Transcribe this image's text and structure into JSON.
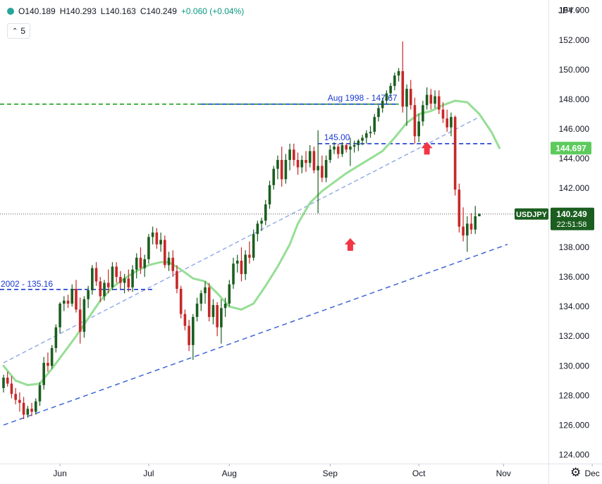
{
  "header": {
    "open": "O140.189",
    "high": "H140.293",
    "low": "L140.163",
    "close": "C140.249",
    "change": "+0.060 (+0.04%)",
    "interval": "5",
    "currency": "JPY"
  },
  "price_axis": {
    "ticks": [
      "124.000",
      "126.000",
      "128.000",
      "130.000",
      "132.000",
      "134.000",
      "136.000",
      "138.000",
      "140.000",
      "142.000",
      "144.000",
      "146.000",
      "148.000",
      "150.000",
      "152.000",
      "154.000"
    ]
  },
  "time_axis": {
    "ticks": [
      "Jun",
      "Jul",
      "Aug",
      "Sep",
      "Oct",
      "Nov",
      "Dec"
    ]
  },
  "labels": {
    "symbol": "USDJPY",
    "last_price": "140.249",
    "countdown": "22:51:58",
    "sma_value": "144.697",
    "level_2002": "2002 - 135.16",
    "level_1998": "Aug 1998 - 147.67",
    "level_145": "145.00"
  },
  "colors": {
    "up": "#1b5e20",
    "down": "#c62828",
    "sma": "#96de96",
    "sma_label": "#5ccb5c",
    "level_line": "#1a3ad1",
    "trend_line": "#3f66d6",
    "green_dashed": "#1aa31a",
    "arrow": "#f23645",
    "symbol_label": "#1b5e20"
  },
  "chart_data": {
    "type": "candlestick",
    "symbol": "USDJPY",
    "ylim": [
      123.4,
      154.7
    ],
    "yticks": [
      124,
      126,
      128,
      130,
      132,
      134,
      136,
      138,
      140,
      142,
      144,
      146,
      148,
      150,
      152,
      154
    ],
    "xticks": [
      {
        "label": "Jun",
        "t": 14
      },
      {
        "label": "Jul",
        "t": 36
      },
      {
        "label": "Aug",
        "t": 56
      },
      {
        "label": "Sep",
        "t": 81
      },
      {
        "label": "Oct",
        "t": 103
      },
      {
        "label": "Nov",
        "t": 124
      },
      {
        "label": "Dec",
        "t": 146
      }
    ],
    "ohlc": [
      [
        128.5,
        129.4,
        128.2,
        129.2
      ],
      [
        129.2,
        129.6,
        128.6,
        128.8
      ],
      [
        128.8,
        129.3,
        127.8,
        128.1
      ],
      [
        128.1,
        128.5,
        127.4,
        127.7
      ],
      [
        127.7,
        128.2,
        126.9,
        127.5
      ],
      [
        127.5,
        127.9,
        126.4,
        126.7
      ],
      [
        126.7,
        127.3,
        126.5,
        127.1
      ],
      [
        127.1,
        127.5,
        126.6,
        126.9
      ],
      [
        126.9,
        127.8,
        126.7,
        127.6
      ],
      [
        127.6,
        128.9,
        127.3,
        128.7
      ],
      [
        128.7,
        130.6,
        128.4,
        130.2
      ],
      [
        130.2,
        130.9,
        129.6,
        130.0
      ],
      [
        130.0,
        131.4,
        129.8,
        131.2
      ],
      [
        131.2,
        132.8,
        130.9,
        132.6
      ],
      [
        132.6,
        134.3,
        132.2,
        134.2
      ],
      [
        134.2,
        134.7,
        133.7,
        134.4
      ],
      [
        134.4,
        134.8,
        133.9,
        134.2
      ],
      [
        134.2,
        135.5,
        134.0,
        135.2
      ],
      [
        135.2,
        135.8,
        133.6,
        133.8
      ],
      [
        133.8,
        134.6,
        131.5,
        132.3
      ],
      [
        132.3,
        134.7,
        131.9,
        134.5
      ],
      [
        134.5,
        135.4,
        133.9,
        135.1
      ],
      [
        135.1,
        136.8,
        134.8,
        136.6
      ],
      [
        136.6,
        137.0,
        135.4,
        135.7
      ],
      [
        135.7,
        136.0,
        134.3,
        134.7
      ],
      [
        134.7,
        135.8,
        134.4,
        135.6
      ],
      [
        135.6,
        136.5,
        134.9,
        135.3
      ],
      [
        135.3,
        137.0,
        135.1,
        136.7
      ],
      [
        136.7,
        137.0,
        135.6,
        136.0
      ],
      [
        136.0,
        136.4,
        135.2,
        135.6
      ],
      [
        135.6,
        136.2,
        134.9,
        135.9
      ],
      [
        135.9,
        136.5,
        135.0,
        135.3
      ],
      [
        135.3,
        136.8,
        135.0,
        136.5
      ],
      [
        136.5,
        137.6,
        135.9,
        137.3
      ],
      [
        137.3,
        138.0,
        136.2,
        136.6
      ],
      [
        136.6,
        137.5,
        136.0,
        137.2
      ],
      [
        137.2,
        138.9,
        136.9,
        138.7
      ],
      [
        138.7,
        139.4,
        138.2,
        139.0
      ],
      [
        139.0,
        139.3,
        137.9,
        138.2
      ],
      [
        138.2,
        139.0,
        137.7,
        138.5
      ],
      [
        138.5,
        138.8,
        136.6,
        136.8
      ],
      [
        136.8,
        137.7,
        136.4,
        137.3
      ],
      [
        137.3,
        137.8,
        136.0,
        136.4
      ],
      [
        136.4,
        136.8,
        134.9,
        135.2
      ],
      [
        135.2,
        135.4,
        133.2,
        133.5
      ],
      [
        133.5,
        133.8,
        132.4,
        132.7
      ],
      [
        132.7,
        133.1,
        131.0,
        131.4
      ],
      [
        131.4,
        133.5,
        130.4,
        133.3
      ],
      [
        133.3,
        134.6,
        133.0,
        134.2
      ],
      [
        134.2,
        135.1,
        133.7,
        134.9
      ],
      [
        134.9,
        135.7,
        134.2,
        135.3
      ],
      [
        135.3,
        135.6,
        133.0,
        133.3
      ],
      [
        133.3,
        134.5,
        132.8,
        134.1
      ],
      [
        134.1,
        134.3,
        132.0,
        132.6
      ],
      [
        132.6,
        134.5,
        131.5,
        133.9
      ],
      [
        133.9,
        134.6,
        133.3,
        134.2
      ],
      [
        134.2,
        135.8,
        134.0,
        135.5
      ],
      [
        135.5,
        137.3,
        135.2,
        136.9
      ],
      [
        136.9,
        137.5,
        136.3,
        137.1
      ],
      [
        137.1,
        138.0,
        135.7,
        136.2
      ],
      [
        136.2,
        137.8,
        135.8,
        137.5
      ],
      [
        137.5,
        138.4,
        136.9,
        137.3
      ],
      [
        137.3,
        139.2,
        137.1,
        138.9
      ],
      [
        138.9,
        139.8,
        138.4,
        139.6
      ],
      [
        139.6,
        140.0,
        139.1,
        139.8
      ],
      [
        139.8,
        141.2,
        139.5,
        140.9
      ],
      [
        140.9,
        142.5,
        140.6,
        142.2
      ],
      [
        142.2,
        143.5,
        141.9,
        143.3
      ],
      [
        143.3,
        144.2,
        142.6,
        143.9
      ],
      [
        143.9,
        144.8,
        142.1,
        142.6
      ],
      [
        142.6,
        144.3,
        142.3,
        143.9
      ],
      [
        143.9,
        145.0,
        143.2,
        144.6
      ],
      [
        144.6,
        145.0,
        143.5,
        143.9
      ],
      [
        143.9,
        144.4,
        142.9,
        143.4
      ],
      [
        143.4,
        144.2,
        143.0,
        143.9
      ],
      [
        143.9,
        144.5,
        143.1,
        143.7
      ],
      [
        143.7,
        144.9,
        143.4,
        144.5
      ],
      [
        144.5,
        144.8,
        143.0,
        143.2
      ],
      [
        143.2,
        145.9,
        140.3,
        143.5
      ],
      [
        143.5,
        144.2,
        142.4,
        142.7
      ],
      [
        142.7,
        144.2,
        142.4,
        143.9
      ],
      [
        143.9,
        144.9,
        143.7,
        144.6
      ],
      [
        144.6,
        145.1,
        144.3,
        144.8
      ],
      [
        144.8,
        145.0,
        144.0,
        144.3
      ],
      [
        144.3,
        145.1,
        144.1,
        144.9
      ],
      [
        144.9,
        145.0,
        144.4,
        144.6
      ],
      [
        144.6,
        145.4,
        143.5,
        144.8
      ],
      [
        144.8,
        145.2,
        144.4,
        144.9
      ],
      [
        144.9,
        145.3,
        144.5,
        145.2
      ],
      [
        145.2,
        145.6,
        144.9,
        145.4
      ],
      [
        145.4,
        145.9,
        145.0,
        145.7
      ],
      [
        145.7,
        146.2,
        145.4,
        145.8
      ],
      [
        145.8,
        147.0,
        145.6,
        146.8
      ],
      [
        146.8,
        147.6,
        146.5,
        147.4
      ],
      [
        147.4,
        148.1,
        147.1,
        147.9
      ],
      [
        147.9,
        148.6,
        147.7,
        148.4
      ],
      [
        148.4,
        149.1,
        148.1,
        148.9
      ],
      [
        148.9,
        149.8,
        148.6,
        149.6
      ],
      [
        149.6,
        150.1,
        149.2,
        149.9
      ],
      [
        149.9,
        151.9,
        147.1,
        147.5
      ],
      [
        147.5,
        149.0,
        146.2,
        148.7
      ],
      [
        148.7,
        149.3,
        147.3,
        147.6
      ],
      [
        147.6,
        148.1,
        145.0,
        145.5
      ],
      [
        145.5,
        147.0,
        145.1,
        146.5
      ],
      [
        146.5,
        147.9,
        146.2,
        147.6
      ],
      [
        147.6,
        148.8,
        147.3,
        148.3
      ],
      [
        148.3,
        148.7,
        147.3,
        147.7
      ],
      [
        147.7,
        148.6,
        147.4,
        148.2
      ],
      [
        148.2,
        148.6,
        147.0,
        147.3
      ],
      [
        147.3,
        147.8,
        146.4,
        146.7
      ],
      [
        146.7,
        147.3,
        145.8,
        146.1
      ],
      [
        146.1,
        147.1,
        145.5,
        146.8
      ],
      [
        146.8,
        146.9,
        141.5,
        141.9
      ],
      [
        141.9,
        142.3,
        139.0,
        139.4
      ],
      [
        139.4,
        140.7,
        138.4,
        138.8
      ],
      [
        138.8,
        140.1,
        137.7,
        139.6
      ],
      [
        139.6,
        140.3,
        138.9,
        139.2
      ],
      [
        139.2,
        140.8,
        138.9,
        140.1
      ],
      [
        140.1,
        140.3,
        140.1,
        140.25
      ]
    ],
    "sma": [
      [
        0,
        130.0
      ],
      [
        3,
        129.0
      ],
      [
        6,
        128.7
      ],
      [
        9,
        128.8
      ],
      [
        12,
        129.8
      ],
      [
        15,
        130.9
      ],
      [
        18,
        132.0
      ],
      [
        21,
        133.2
      ],
      [
        24,
        134.4
      ],
      [
        27,
        135.3
      ],
      [
        30,
        135.9
      ],
      [
        33,
        136.4
      ],
      [
        36,
        136.8
      ],
      [
        39,
        137.0
      ],
      [
        41,
        137.0
      ],
      [
        44,
        136.5
      ],
      [
        47,
        135.9
      ],
      [
        50,
        135.7
      ],
      [
        53,
        134.9
      ],
      [
        56,
        134.0
      ],
      [
        59,
        133.8
      ],
      [
        62,
        134.2
      ],
      [
        65,
        135.4
      ],
      [
        68,
        136.7
      ],
      [
        71,
        138.2
      ],
      [
        73,
        139.6
      ],
      [
        76,
        141.0
      ],
      [
        79,
        141.8
      ],
      [
        82,
        142.4
      ],
      [
        85,
        143.0
      ],
      [
        88,
        143.5
      ],
      [
        91,
        144.0
      ],
      [
        94,
        144.5
      ],
      [
        97,
        145.4
      ],
      [
        100,
        146.4
      ],
      [
        103,
        147.0
      ],
      [
        106,
        147.2
      ],
      [
        109,
        147.6
      ],
      [
        112,
        147.9
      ],
      [
        115,
        147.8
      ],
      [
        118,
        147.0
      ],
      [
        121,
        145.8
      ],
      [
        123,
        144.7
      ]
    ],
    "levels": [
      {
        "label": "2002 - 135.16",
        "value": 135.16,
        "from": 0,
        "to": 37
      },
      {
        "label": "Aug 1998 - 147.67",
        "value": 147.67,
        "from": 0,
        "to": 98
      },
      {
        "label": "145.00",
        "value": 145.0,
        "from": 78,
        "to": 121
      }
    ],
    "trendlines": [
      {
        "from": [
          0,
          126.0
        ],
        "to": [
          125,
          138.2
        ],
        "style": "dashed"
      },
      {
        "from": [
          0,
          130.2
        ],
        "to": [
          118,
          146.8
        ],
        "style": "light-dashed"
      }
    ],
    "arrows": [
      {
        "t": 86,
        "price": 139.0
      },
      {
        "t": 105,
        "price": 145.5
      }
    ],
    "last_price": 140.249,
    "sma_last": 144.697
  }
}
